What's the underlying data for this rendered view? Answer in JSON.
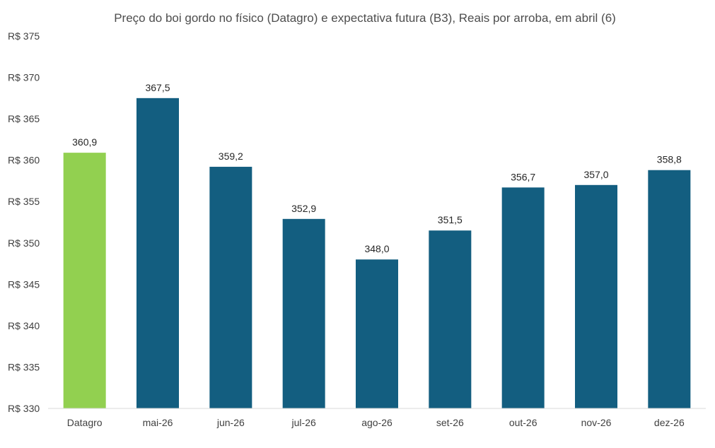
{
  "chart_data": {
    "type": "bar",
    "title": "Preço do boi gordo no físico (Datagro)  e expectativa futura (B3), Reais por arroba, em abril (6)",
    "xlabel": "",
    "ylabel": "",
    "ylim": [
      330,
      375
    ],
    "y_tick_step": 5,
    "y_tick_prefix": "R$ ",
    "categories": [
      "Datagro",
      "mai-26",
      "jun-26",
      "jul-26",
      "ago-26",
      "set-26",
      "out-26",
      "nov-26",
      "dez-26"
    ],
    "values": [
      360.9,
      367.5,
      359.2,
      352.9,
      348.0,
      351.5,
      356.7,
      357.0,
      358.8
    ],
    "value_labels": [
      "360,9",
      "367,5",
      "359,2",
      "352,9",
      "348,0",
      "351,5",
      "356,7",
      "357,0",
      "358,8"
    ],
    "grid": false,
    "legend": "none",
    "colors": {
      "highlight": "#92d050",
      "default": "#135e80",
      "axis": "#d9d9d9"
    },
    "highlight_index": 0
  }
}
